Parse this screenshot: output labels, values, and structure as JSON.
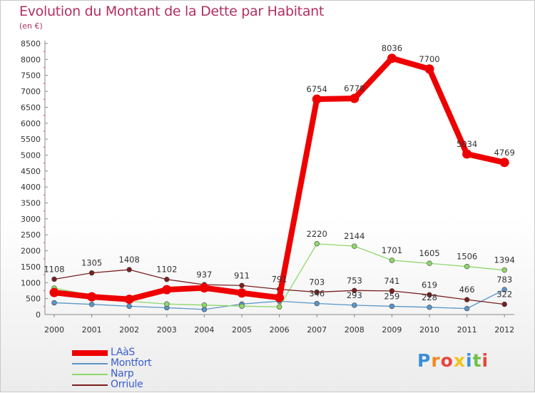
{
  "chart_data": {
    "type": "line",
    "title": "Evolution du Montant de la Dette par Habitant",
    "subtitle": "(en €)",
    "xlabel": "",
    "ylabel": "",
    "categories": [
      "2000",
      "2001",
      "2002",
      "2003",
      "2004",
      "2005",
      "2006",
      "2007",
      "2008",
      "2009",
      "2010",
      "2011",
      "2012"
    ],
    "ylim": [
      0,
      8500
    ],
    "yticks": [
      0,
      500,
      1000,
      1500,
      2000,
      2500,
      3000,
      3500,
      4000,
      4500,
      5000,
      5500,
      6000,
      6500,
      7000,
      7500,
      8000,
      8500
    ],
    "grid": false,
    "legend_position": "bottom-left",
    "series": [
      {
        "name": "LAàS",
        "color": "#ee0000",
        "width": 8,
        "labels": [
          "",
          "",
          "",
          "",
          "",
          "",
          "",
          "6754",
          "6778",
          "8036",
          "7700",
          "5034",
          "4769"
        ],
        "values": [
          690,
          557,
          479,
          780,
          836,
          677,
          530,
          6754,
          6778,
          8036,
          7700,
          5034,
          4769
        ]
      },
      {
        "name": "Montfort",
        "color": "#5a96c8",
        "width": 1.3,
        "labels": [
          "",
          "",
          "",
          "",
          "",
          "",
          "",
          "346",
          "293",
          "259",
          "228",
          "",
          "783"
        ],
        "values": [
          370,
          320,
          260,
          213,
          160,
          330,
          420,
          346,
          293,
          259,
          228,
          188,
          783
        ]
      },
      {
        "name": "Narp",
        "color": "#8ed86a",
        "width": 1.3,
        "labels": [
          "",
          "",
          "",
          "",
          "",
          "",
          "",
          "2220",
          "2144",
          "1701",
          "1605",
          "1506",
          "1394"
        ],
        "values": [
          830,
          601,
          417,
          330,
          298,
          264,
          241,
          2220,
          2144,
          1701,
          1605,
          1506,
          1394
        ]
      },
      {
        "name": "Orriule",
        "color": "#7a1f1f",
        "width": 1.3,
        "labels": [
          "1108",
          "1305",
          "1408",
          "1102",
          "937",
          "911",
          "791",
          "703",
          "753",
          "741",
          "619",
          "466",
          "322"
        ],
        "values": [
          1108,
          1305,
          1408,
          1102,
          937,
          911,
          791,
          703,
          753,
          741,
          619,
          466,
          322
        ]
      }
    ]
  },
  "branding": {
    "logo_text": "Proxiti",
    "logo_colors": [
      "#3a8fd8",
      "#f08a1e",
      "#e8453c",
      "#f2c21c",
      "#3a8fd8",
      "#6fc04a",
      "#e8453c"
    ]
  }
}
